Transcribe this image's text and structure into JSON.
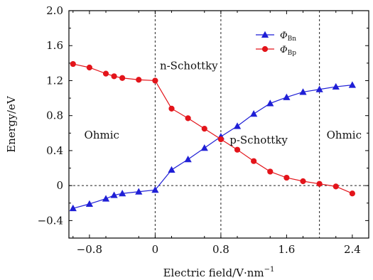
{
  "chart_data": {
    "type": "line",
    "xlabel": "Electric field/V·nm",
    "xlabel_superscript": "−1",
    "ylabel": "Energy/eV",
    "xlim": [
      -1.05,
      2.6
    ],
    "ylim": [
      -0.6,
      2.0
    ],
    "x_ticks": [
      -0.8,
      0,
      0.8,
      1.6,
      2.4
    ],
    "x_tick_labels": [
      "−0.8",
      "0",
      "0.8",
      "1.6",
      "2.4"
    ],
    "y_ticks": [
      -0.4,
      0,
      0.4,
      0.8,
      1.2,
      1.6,
      2.0
    ],
    "y_tick_labels": [
      "−0.4",
      "0",
      "0.4",
      "0.8",
      "1.2",
      "1.6",
      "2.0"
    ],
    "grid": false,
    "legend_position": "top-right",
    "reference_lines": {
      "vertical_x": [
        0,
        0.8,
        2.0
      ],
      "horizontal_y": [
        0
      ]
    },
    "region_labels": [
      {
        "text": "Ohmic",
        "x": -0.65,
        "y": 0.58
      },
      {
        "text": "n-Schottky",
        "x": 0.41,
        "y": 1.37
      },
      {
        "text": "p-Schottky",
        "x": 1.26,
        "y": 0.52
      },
      {
        "text": "Ohmic",
        "x": 2.3,
        "y": 0.58
      }
    ],
    "series": [
      {
        "name": "Φ",
        "subscript": "Bn",
        "color": "#1f1fd6",
        "marker": "triangle",
        "points": [
          [
            -1.0,
            -0.26
          ],
          [
            -0.8,
            -0.21
          ],
          [
            -0.6,
            -0.15
          ],
          [
            -0.5,
            -0.11
          ],
          [
            -0.4,
            -0.09
          ],
          [
            -0.2,
            -0.07
          ],
          [
            0.0,
            -0.05
          ],
          [
            0.2,
            0.18
          ],
          [
            0.4,
            0.3
          ],
          [
            0.6,
            0.43
          ],
          [
            0.8,
            0.56
          ],
          [
            1.0,
            0.68
          ],
          [
            1.2,
            0.82
          ],
          [
            1.4,
            0.94
          ],
          [
            1.6,
            1.01
          ],
          [
            1.8,
            1.07
          ],
          [
            2.0,
            1.1
          ],
          [
            2.2,
            1.13
          ],
          [
            2.4,
            1.15
          ]
        ]
      },
      {
        "name": "Φ",
        "subscript": "Bp",
        "color": "#e3141a",
        "marker": "circle",
        "points": [
          [
            -1.0,
            1.39
          ],
          [
            -0.8,
            1.35
          ],
          [
            -0.6,
            1.28
          ],
          [
            -0.5,
            1.25
          ],
          [
            -0.4,
            1.23
          ],
          [
            -0.2,
            1.21
          ],
          [
            0.0,
            1.2
          ],
          [
            0.2,
            0.88
          ],
          [
            0.4,
            0.77
          ],
          [
            0.6,
            0.65
          ],
          [
            0.8,
            0.53
          ],
          [
            1.0,
            0.41
          ],
          [
            1.2,
            0.28
          ],
          [
            1.4,
            0.16
          ],
          [
            1.6,
            0.09
          ],
          [
            1.8,
            0.05
          ],
          [
            2.0,
            0.02
          ],
          [
            2.2,
            -0.01
          ],
          [
            2.4,
            -0.09
          ]
        ]
      }
    ]
  }
}
